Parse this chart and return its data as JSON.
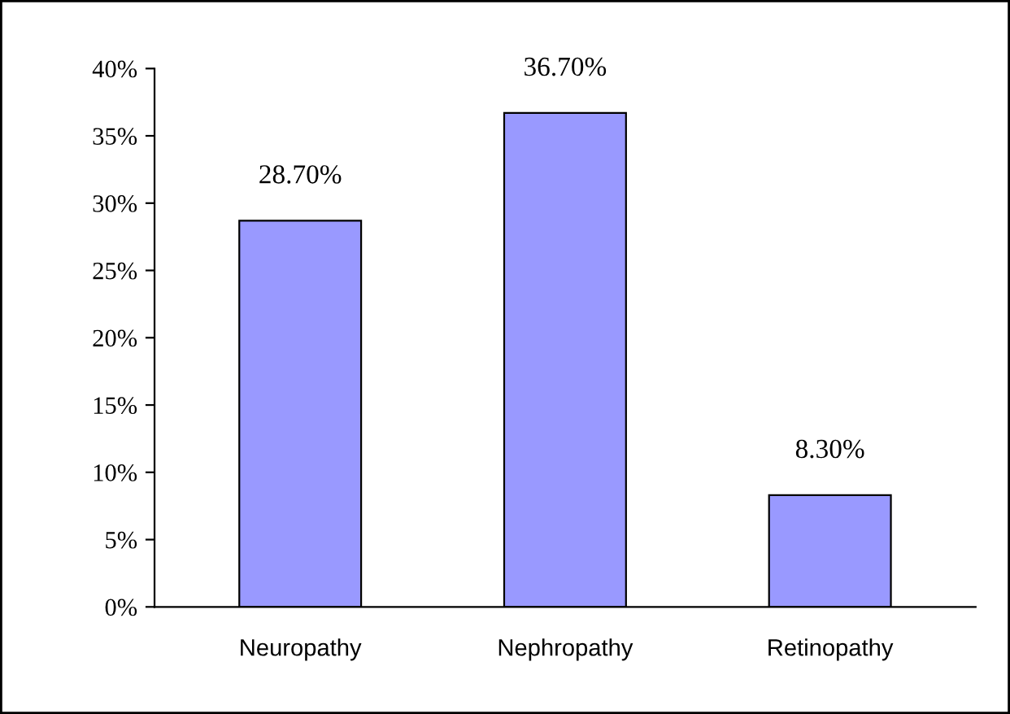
{
  "chart_data": {
    "type": "bar",
    "categories": [
      "Neuropathy",
      "Nephropathy",
      "Retinopathy"
    ],
    "values": [
      28.7,
      36.7,
      8.3
    ],
    "value_labels": [
      "28.70%",
      "36.70%",
      "8.30%"
    ],
    "color": "#9999ff",
    "ylim": [
      0,
      40
    ],
    "yticks": [
      {
        "value": 0,
        "label": "0%"
      },
      {
        "value": 5,
        "label": "5%"
      },
      {
        "value": 10,
        "label": "10%"
      },
      {
        "value": 15,
        "label": "15%"
      },
      {
        "value": 20,
        "label": "20%"
      },
      {
        "value": 25,
        "label": "25%"
      },
      {
        "value": 30,
        "label": "30%"
      },
      {
        "value": 35,
        "label": "35%"
      },
      {
        "value": 40,
        "label": "40%"
      }
    ],
    "grid": false,
    "legend": false
  }
}
